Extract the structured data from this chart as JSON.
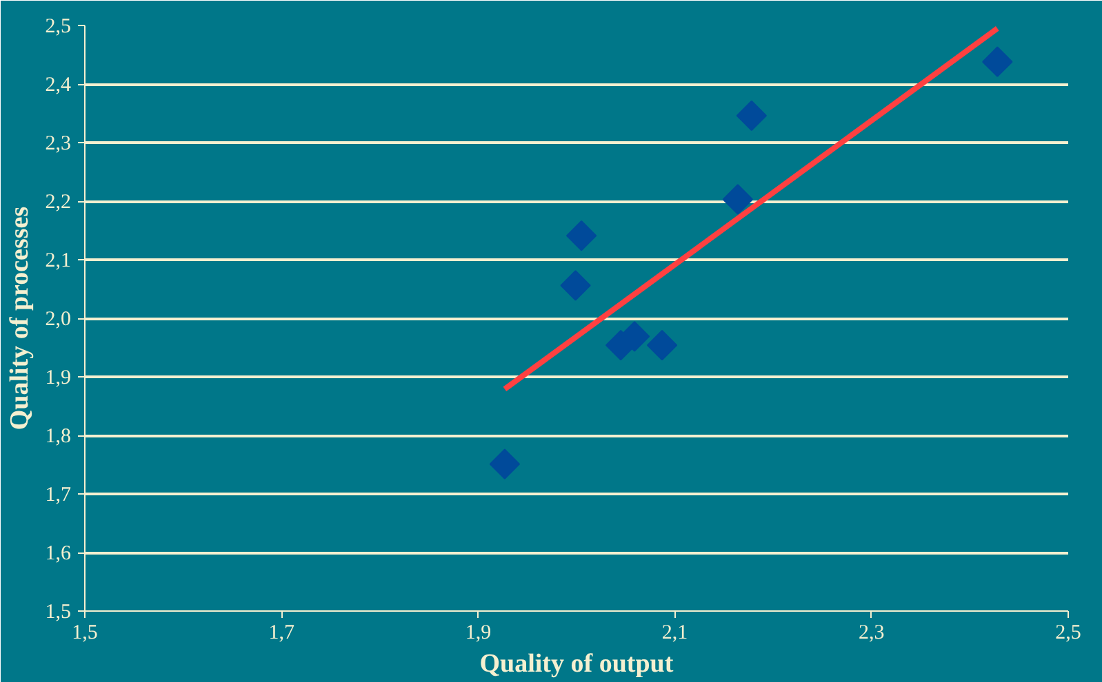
{
  "chart_data": {
    "type": "scatter",
    "xlabel": "Quality of output",
    "ylabel": "Quality of processes",
    "xlim": [
      1.5,
      2.5
    ],
    "ylim": [
      1.5,
      2.5
    ],
    "xticks": [
      {
        "value": 1.5,
        "label": "1,5"
      },
      {
        "value": 1.7,
        "label": "1,7"
      },
      {
        "value": 1.9,
        "label": "1,9"
      },
      {
        "value": 2.1,
        "label": "2,1"
      },
      {
        "value": 2.3,
        "label": "2,3"
      },
      {
        "value": 2.5,
        "label": "2,5"
      }
    ],
    "yticks": [
      {
        "value": 1.5,
        "label": "1,5"
      },
      {
        "value": 1.6,
        "label": "1,6"
      },
      {
        "value": 1.7,
        "label": "1,7"
      },
      {
        "value": 1.8,
        "label": "1,8"
      },
      {
        "value": 1.9,
        "label": "1,9"
      },
      {
        "value": 2.0,
        "label": "2,0"
      },
      {
        "value": 2.1,
        "label": "2,1"
      },
      {
        "value": 2.2,
        "label": "2,2"
      },
      {
        "value": 2.3,
        "label": "2,3"
      },
      {
        "value": 2.4,
        "label": "2,4"
      },
      {
        "value": 2.5,
        "label": "2,5"
      }
    ],
    "grid": "y",
    "series": [
      {
        "marker": "diamond",
        "color": "#004a9a",
        "x": [
          1.927,
          1.999,
          2.005,
          2.045,
          2.059,
          2.087,
          2.164,
          2.178,
          2.428
        ],
        "values": [
          1.751,
          2.056,
          2.141,
          1.954,
          1.969,
          1.954,
          2.203,
          2.346,
          2.438
        ]
      },
      {
        "type": "line",
        "color": "#ff4040",
        "line_style": "solid",
        "x": [
          1.927,
          2.428
        ],
        "values": [
          1.879,
          2.495
        ]
      }
    ]
  }
}
